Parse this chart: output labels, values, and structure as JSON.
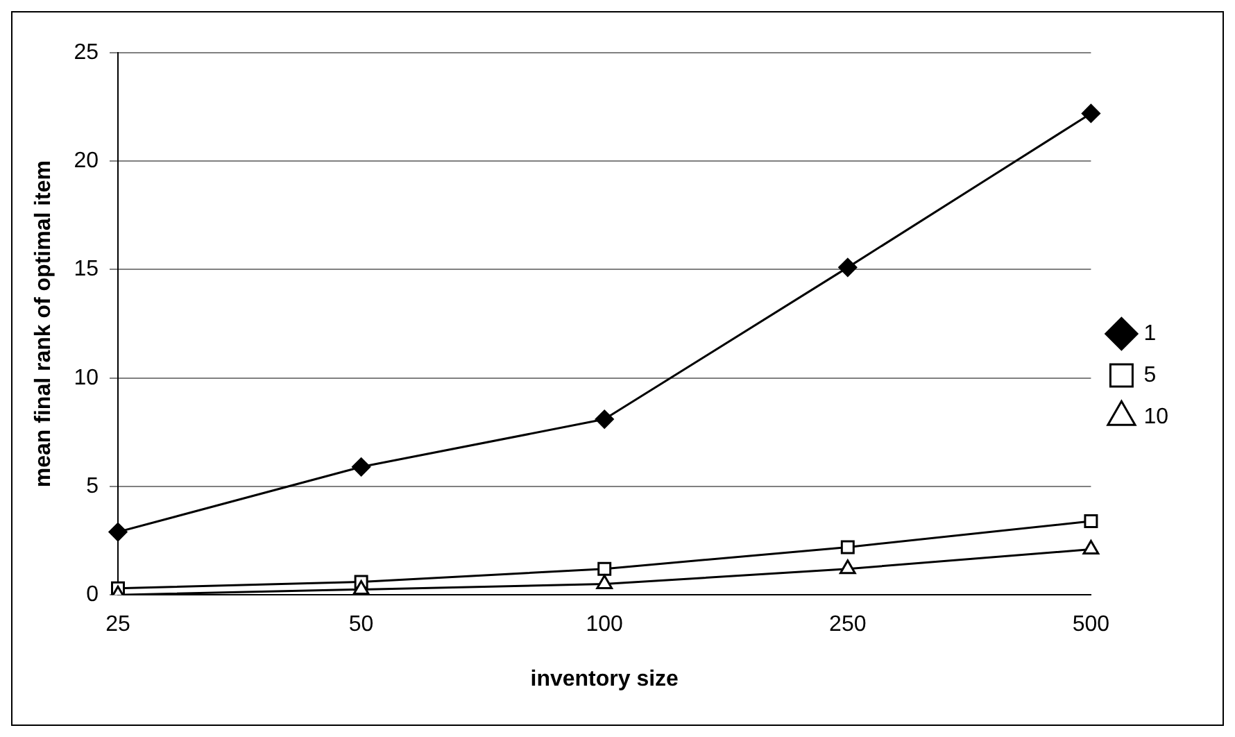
{
  "chart_data": {
    "type": "line",
    "xlabel": "inventory size",
    "ylabel": "mean final rank of optimal item",
    "categories": [
      "25",
      "50",
      "100",
      "250",
      "500"
    ],
    "ylim": [
      0,
      25
    ],
    "yticks": [
      0,
      5,
      10,
      15,
      20,
      25
    ],
    "grid": "y",
    "legend": "right",
    "line_style": "solid",
    "series": [
      {
        "name": "1",
        "color": "#000000",
        "marker": "diamond",
        "values": [
          2.9,
          5.9,
          8.1,
          15.1,
          22.2
        ]
      },
      {
        "name": "5",
        "color": "#000000",
        "marker": "square",
        "values": [
          0.3,
          0.6,
          1.2,
          2.2,
          3.4
        ]
      },
      {
        "name": "10",
        "color": "#000000",
        "marker": "triangle",
        "values": [
          0,
          0.25,
          0.5,
          1.2,
          2.1
        ]
      }
    ]
  }
}
